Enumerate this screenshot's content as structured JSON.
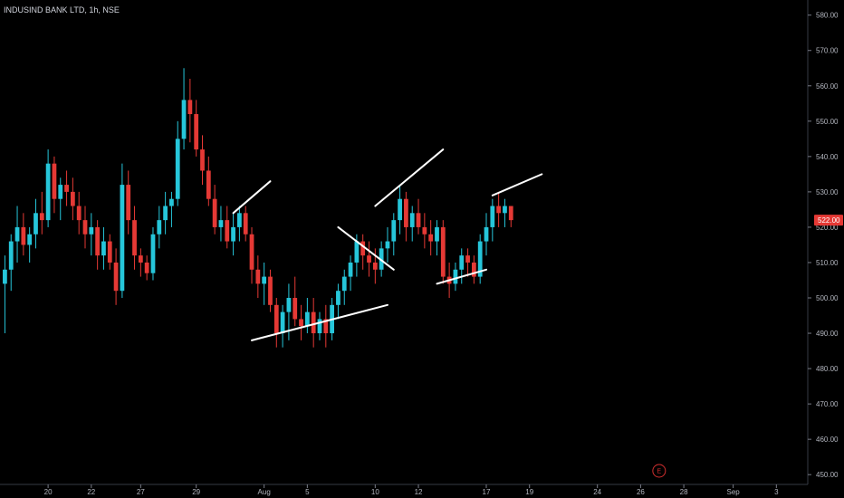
{
  "header": {
    "title": "INDUSIND BANK LTD, 1h, NSE"
  },
  "colors": {
    "background": "#000000",
    "up": "#26c6da",
    "down": "#e53935",
    "axis": "#787b86",
    "text": "#b2b5be",
    "trendline": "#ffffff",
    "event": "#d32f2f"
  },
  "event_marker": {
    "label": "E",
    "date": "28"
  },
  "chart_data": {
    "type": "candlestick",
    "title": "INDUSIND BANK LTD, 1h, NSE",
    "y_ticks": [
      450,
      460,
      470,
      480,
      490,
      500,
      510,
      520,
      530,
      540,
      550,
      560,
      570,
      580
    ],
    "y_tick_labels": [
      "450.00",
      "460.00",
      "470.00",
      "480.00",
      "490.00",
      "500.00",
      "510.00",
      "520.00",
      "530.00",
      "540.00",
      "550.00",
      "560.00",
      "570.00",
      "580.00"
    ],
    "ylim": [
      448,
      583
    ],
    "x_ticks": [
      {
        "label": "20",
        "bar": 7
      },
      {
        "label": "22",
        "bar": 14
      },
      {
        "label": "27",
        "bar": 22
      },
      {
        "label": "29",
        "bar": 31
      },
      {
        "label": "Aug",
        "bar": 42
      },
      {
        "label": "5",
        "bar": 49
      },
      {
        "label": "10",
        "bar": 60
      },
      {
        "label": "12",
        "bar": 67
      },
      {
        "label": "17",
        "bar": 78
      },
      {
        "label": "19",
        "bar": 85
      },
      {
        "label": "24",
        "bar": 96
      },
      {
        "label": "26",
        "bar": 103
      },
      {
        "label": "28",
        "bar": 110
      },
      {
        "label": "Sep",
        "bar": 118
      },
      {
        "label": "3",
        "bar": 125
      }
    ],
    "last_price": {
      "value": 522.0,
      "label": "522.00"
    },
    "candles": [
      [
        504,
        512,
        490,
        508
      ],
      [
        508,
        518,
        502,
        516
      ],
      [
        516,
        526,
        510,
        520
      ],
      [
        520,
        524,
        512,
        515
      ],
      [
        515,
        520,
        510,
        518
      ],
      [
        518,
        528,
        514,
        524
      ],
      [
        524,
        530,
        518,
        522
      ],
      [
        522,
        542,
        520,
        538
      ],
      [
        538,
        540,
        524,
        528
      ],
      [
        528,
        534,
        522,
        532
      ],
      [
        532,
        536,
        526,
        530
      ],
      [
        530,
        534,
        522,
        526
      ],
      [
        526,
        530,
        518,
        522
      ],
      [
        522,
        526,
        514,
        518
      ],
      [
        518,
        524,
        512,
        520
      ],
      [
        520,
        522,
        508,
        512
      ],
      [
        512,
        520,
        508,
        516
      ],
      [
        516,
        518,
        508,
        510
      ],
      [
        510,
        514,
        498,
        502
      ],
      [
        502,
        538,
        500,
        532
      ],
      [
        532,
        536,
        518,
        522
      ],
      [
        522,
        526,
        508,
        512
      ],
      [
        512,
        514,
        506,
        510
      ],
      [
        510,
        512,
        505,
        507
      ],
      [
        507,
        520,
        505,
        518
      ],
      [
        518,
        526,
        514,
        522
      ],
      [
        522,
        530,
        518,
        526
      ],
      [
        526,
        530,
        520,
        528
      ],
      [
        528,
        550,
        526,
        545
      ],
      [
        545,
        565,
        542,
        556
      ],
      [
        556,
        562,
        544,
        552
      ],
      [
        552,
        556,
        540,
        542
      ],
      [
        542,
        546,
        532,
        536
      ],
      [
        536,
        540,
        526,
        528
      ],
      [
        528,
        532,
        518,
        520
      ],
      [
        520,
        526,
        516,
        522
      ],
      [
        522,
        526,
        514,
        516
      ],
      [
        516,
        524,
        512,
        520
      ],
      [
        520,
        526,
        516,
        524
      ],
      [
        524,
        526,
        516,
        518
      ],
      [
        518,
        520,
        504,
        508
      ],
      [
        508,
        512,
        500,
        504
      ],
      [
        504,
        510,
        498,
        506
      ],
      [
        506,
        508,
        496,
        498
      ],
      [
        498,
        500,
        486,
        490
      ],
      [
        490,
        498,
        486,
        496
      ],
      [
        496,
        504,
        488,
        500
      ],
      [
        500,
        506,
        492,
        494
      ],
      [
        494,
        498,
        488,
        492
      ],
      [
        492,
        500,
        490,
        496
      ],
      [
        496,
        500,
        486,
        490
      ],
      [
        490,
        496,
        488,
        494
      ],
      [
        494,
        498,
        486,
        490
      ],
      [
        490,
        500,
        488,
        498
      ],
      [
        498,
        504,
        494,
        502
      ],
      [
        502,
        508,
        498,
        506
      ],
      [
        506,
        512,
        502,
        510
      ],
      [
        510,
        518,
        506,
        516
      ],
      [
        516,
        518,
        508,
        512
      ],
      [
        512,
        516,
        506,
        510
      ],
      [
        510,
        514,
        504,
        508
      ],
      [
        508,
        516,
        506,
        514
      ],
      [
        514,
        520,
        510,
        516
      ],
      [
        516,
        524,
        512,
        522
      ],
      [
        522,
        532,
        518,
        528
      ],
      [
        528,
        530,
        516,
        520
      ],
      [
        520,
        526,
        516,
        524
      ],
      [
        524,
        528,
        518,
        520
      ],
      [
        520,
        524,
        514,
        518
      ],
      [
        518,
        522,
        512,
        516
      ],
      [
        516,
        522,
        512,
        520
      ],
      [
        520,
        522,
        504,
        506
      ],
      [
        506,
        510,
        500,
        504
      ],
      [
        504,
        510,
        502,
        508
      ],
      [
        508,
        514,
        504,
        512
      ],
      [
        512,
        514,
        506,
        510
      ],
      [
        510,
        512,
        504,
        506
      ],
      [
        506,
        518,
        504,
        516
      ],
      [
        516,
        524,
        512,
        520
      ],
      [
        520,
        528,
        516,
        526
      ],
      [
        526,
        530,
        520,
        524
      ],
      [
        524,
        528,
        520,
        526
      ],
      [
        526,
        526,
        520,
        522
      ]
    ],
    "trendlines": [
      {
        "from": [
          37,
          524
        ],
        "to": [
          43,
          533
        ]
      },
      {
        "from": [
          40,
          488
        ],
        "to": [
          62,
          498
        ]
      },
      {
        "from": [
          54,
          520
        ],
        "to": [
          63,
          508
        ]
      },
      {
        "from": [
          60,
          526
        ],
        "to": [
          71,
          542
        ]
      },
      {
        "from": [
          70,
          504
        ],
        "to": [
          78,
          508
        ]
      },
      {
        "from": [
          79,
          529
        ],
        "to": [
          87,
          535
        ]
      }
    ]
  }
}
